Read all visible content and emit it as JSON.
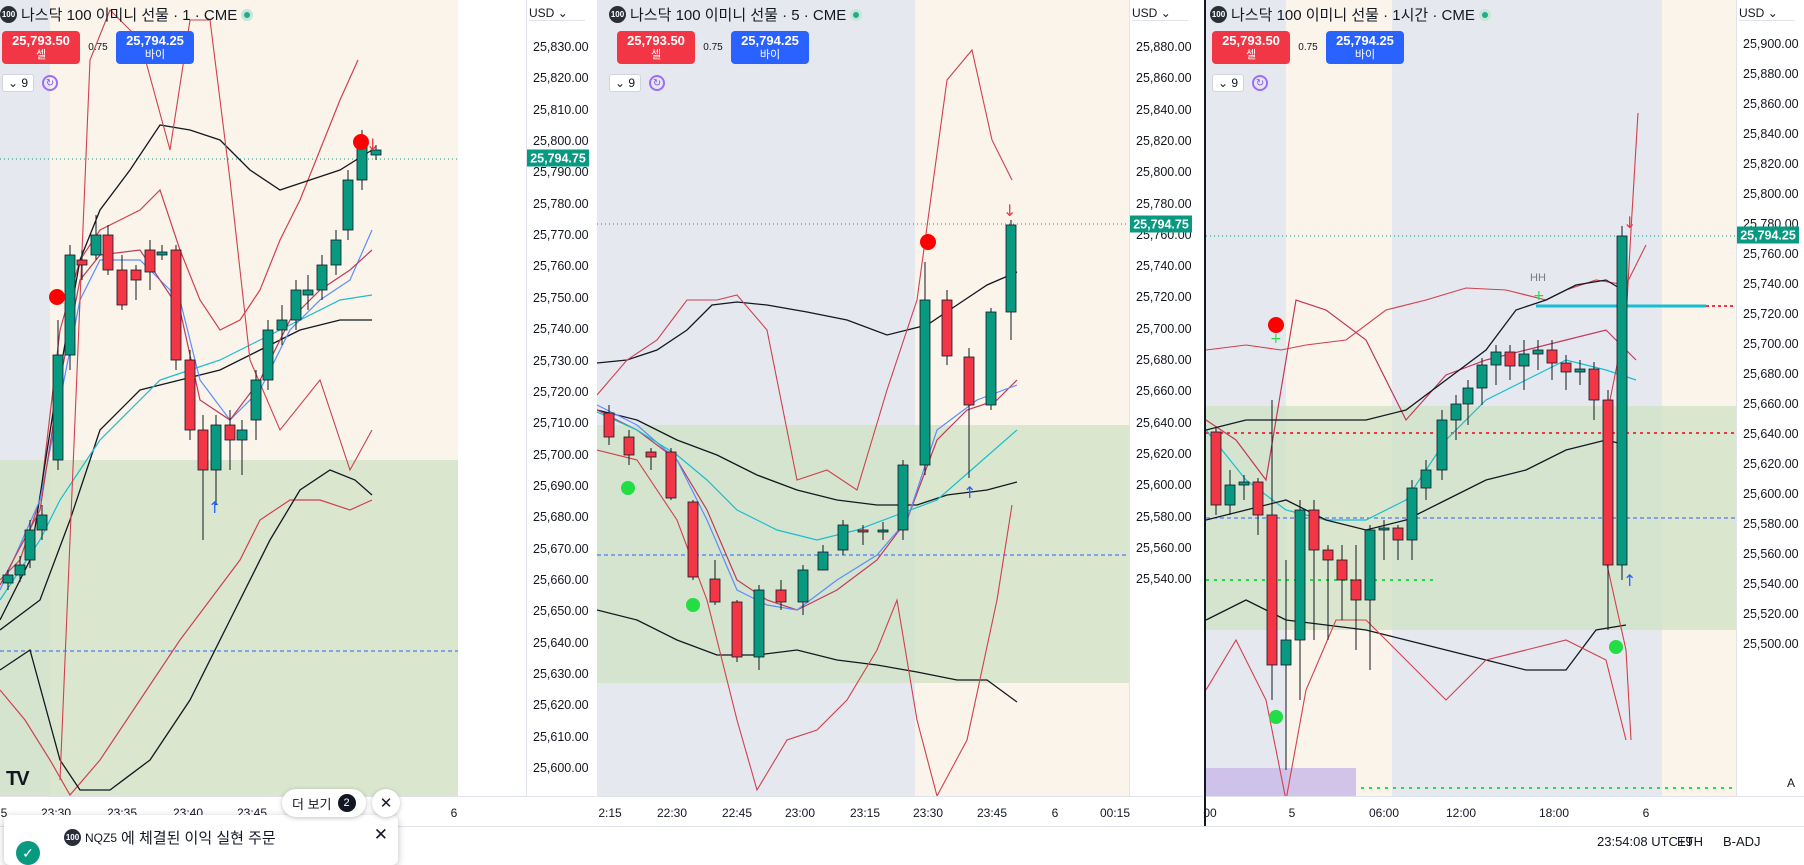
{
  "panes": [
    {
      "id": "p1",
      "symbol_icon": "100",
      "title": "나스닥 100 이미니 선물 · 1 · CME",
      "sell": {
        "price": "25,793.50",
        "label": "셀"
      },
      "buy": {
        "price": "25,794.25",
        "label": "바이"
      },
      "spread": "0.75",
      "indicator_count": "9",
      "currency": "USD",
      "price_ticks": [
        "25,830.00",
        "25,820.00",
        "25,810.00",
        "25,800.00",
        "25,790.00",
        "25,780.00",
        "25,770.00",
        "25,760.00",
        "25,750.00",
        "25,740.00",
        "25,730.00",
        "25,720.00",
        "25,710.00",
        "25,700.00",
        "25,690.00",
        "25,680.00",
        "25,670.00",
        "25,660.00",
        "25,650.00",
        "25,640.00",
        "25,630.00",
        "25,620.00",
        "25,610.00",
        "25,600.00"
      ],
      "last_price": "25,794.75",
      "time_ticks": [
        "5",
        "23:30",
        "23:35",
        "23:40",
        "23:45",
        "5",
        "6"
      ]
    },
    {
      "id": "p2",
      "symbol_icon": "100",
      "title": "나스닥 100 이미니 선물 · 5 · CME",
      "sell": {
        "price": "25,793.50",
        "label": "셀"
      },
      "buy": {
        "price": "25,794.25",
        "label": "바이"
      },
      "spread": "0.75",
      "indicator_count": "9",
      "currency": "USD",
      "price_ticks": [
        "25,880.00",
        "25,860.00",
        "25,840.00",
        "25,820.00",
        "25,800.00",
        "25,780.00",
        "25,760.00",
        "25,740.00",
        "25,720.00",
        "25,700.00",
        "25,680.00",
        "25,660.00",
        "25,640.00",
        "25,620.00",
        "25,600.00",
        "25,580.00",
        "25,560.00",
        "25,540.00"
      ],
      "last_price": "25,794.75",
      "time_ticks": [
        "2:15",
        "22:30",
        "22:45",
        "23:00",
        "23:15",
        "23:30",
        "23:45",
        "6",
        "00:15"
      ]
    },
    {
      "id": "p3",
      "symbol_icon": "100",
      "title": "나스닥 100 이미니 선물 · 1시간 · CME",
      "sell": {
        "price": "25,793.50",
        "label": "셀"
      },
      "buy": {
        "price": "25,794.25",
        "label": "바이"
      },
      "spread": "0.75",
      "indicator_count": "9",
      "currency": "USD",
      "price_ticks": [
        "25,900.00",
        "25,880.00",
        "25,860.00",
        "25,840.00",
        "25,820.00",
        "25,800.00",
        "25,780.00",
        "25,760.00",
        "25,740.00",
        "25,720.00",
        "25,700.00",
        "25,680.00",
        "25,660.00",
        "25,640.00",
        "25,620.00",
        "25,600.00",
        "25,580.00",
        "25,560.00",
        "25,540.00",
        "25,520.00",
        "25,500.00"
      ],
      "last_price": "25,794.25",
      "time_ticks": [
        "00",
        "5",
        "06:00",
        "12:00",
        "18:00",
        "6"
      ],
      "label_hh": "HH",
      "axis_corner": "A"
    }
  ],
  "status": {
    "time": "23:54:08 UTC+9",
    "session": "ETH",
    "adjust": "B-ADJ"
  },
  "toast": {
    "symbol_icon": "100",
    "symbol": "NQZ5",
    "message": "에 체결된 이익 실현 주문"
  },
  "more_button": {
    "label": "더 보기",
    "count": "2"
  },
  "tv_logo": "TV",
  "colors": {
    "up": "#089981",
    "down": "#f23645",
    "accent": "#2962ff"
  },
  "icons": [
    "sync-icon",
    "chevron-down-icon",
    "close-icon",
    "check-icon",
    "live-dot-icon",
    "tradingview-logo-icon"
  ]
}
